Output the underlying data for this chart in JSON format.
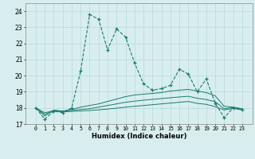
{
  "xlabel": "Humidex (Indice chaleur)",
  "x": [
    0,
    1,
    2,
    3,
    4,
    5,
    6,
    7,
    8,
    9,
    10,
    11,
    12,
    13,
    14,
    15,
    16,
    17,
    18,
    19,
    20,
    21,
    22,
    23
  ],
  "line1": [
    18.0,
    17.3,
    17.8,
    17.7,
    18.0,
    20.3,
    23.8,
    23.5,
    21.6,
    22.9,
    22.4,
    20.8,
    19.5,
    19.1,
    19.2,
    19.4,
    20.4,
    20.1,
    19.0,
    19.8,
    18.3,
    17.4,
    18.0,
    17.9
  ],
  "line2": [
    18.0,
    17.5,
    17.85,
    17.8,
    17.9,
    18.05,
    18.15,
    18.25,
    18.4,
    18.55,
    18.7,
    18.8,
    18.85,
    18.9,
    18.95,
    19.05,
    19.1,
    19.15,
    19.05,
    18.95,
    18.75,
    18.1,
    18.05,
    17.95
  ],
  "line3": [
    18.0,
    17.6,
    17.85,
    17.8,
    17.85,
    17.9,
    17.95,
    18.05,
    18.15,
    18.25,
    18.35,
    18.42,
    18.48,
    18.53,
    18.58,
    18.63,
    18.68,
    18.72,
    18.6,
    18.52,
    18.38,
    17.95,
    18.02,
    17.92
  ],
  "line4": [
    18.0,
    17.7,
    17.82,
    17.75,
    17.78,
    17.81,
    17.84,
    17.88,
    17.93,
    17.98,
    18.05,
    18.1,
    18.15,
    18.2,
    18.25,
    18.3,
    18.35,
    18.4,
    18.28,
    18.22,
    18.08,
    17.87,
    17.97,
    17.87
  ],
  "line_color": "#1a7a6e",
  "bg_color": "#d8eeee",
  "grid_color": "#b8d8d8",
  "ylim": [
    17,
    24.5
  ],
  "yticks": [
    17,
    18,
    19,
    20,
    21,
    22,
    23,
    24
  ],
  "xticks": [
    0,
    1,
    2,
    3,
    4,
    5,
    6,
    7,
    8,
    9,
    10,
    11,
    12,
    13,
    14,
    15,
    16,
    17,
    18,
    19,
    20,
    21,
    22,
    23
  ]
}
